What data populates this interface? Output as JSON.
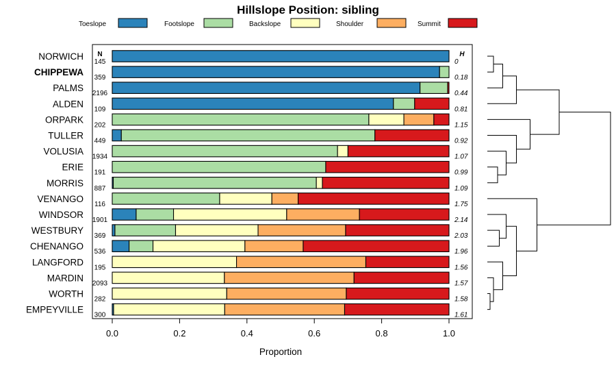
{
  "chart_data": {
    "type": "bar",
    "orientation": "horizontal",
    "stacked": true,
    "title": "Hillslope Position: sibling",
    "xlabel": "Proportion",
    "ylabel": "",
    "xlim": [
      0,
      1
    ],
    "xticks": [
      "0.0",
      "0.2",
      "0.4",
      "0.6",
      "0.8",
      "1.0"
    ],
    "n_header": "N",
    "h_header": "H",
    "highlighted_category": "CHIPPEWA",
    "series": [
      {
        "name": "Toeslope",
        "color": "#2b83ba"
      },
      {
        "name": "Footslope",
        "color": "#abdda4"
      },
      {
        "name": "Backslope",
        "color": "#ffffbf"
      },
      {
        "name": "Shoulder",
        "color": "#fdae61"
      },
      {
        "name": "Summit",
        "color": "#d7191c"
      }
    ],
    "categories": [
      "NORWICH",
      "CHIPPEWA",
      "PALMS",
      "ALDEN",
      "ORPARK",
      "TULLER",
      "VOLUSIA",
      "ERIE",
      "MORRIS",
      "VENANGO",
      "WINDSOR",
      "WESTBURY",
      "CHENANGO",
      "LANGFORD",
      "MARDIN",
      "WORTH",
      "EMPEYVILLE"
    ],
    "n": [
      "145",
      "359",
      "2196",
      "109",
      "202",
      "449",
      "1934",
      "191",
      "887",
      "116",
      "1901",
      "369",
      "536",
      "195",
      "2093",
      "282",
      "300"
    ],
    "h": [
      "0",
      "0.18",
      "0.44",
      "0.81",
      "1.15",
      "0.92",
      "1.07",
      "0.99",
      "1.09",
      "1.75",
      "2.14",
      "2.03",
      "1.96",
      "1.56",
      "1.57",
      "1.58",
      "1.61"
    ],
    "proportions": [
      [
        1.0,
        0.0,
        0.0,
        0.0,
        0.0
      ],
      [
        0.972,
        0.028,
        0.0,
        0.0,
        0.0
      ],
      [
        0.914,
        0.082,
        0.0,
        0.0,
        0.004
      ],
      [
        0.835,
        0.063,
        0.0,
        0.0,
        0.102
      ],
      [
        0.0,
        0.762,
        0.104,
        0.089,
        0.045
      ],
      [
        0.027,
        0.753,
        0.0,
        0.0,
        0.22
      ],
      [
        0.0,
        0.669,
        0.031,
        0.0,
        0.3
      ],
      [
        0.0,
        0.634,
        0.0,
        0.0,
        0.366
      ],
      [
        0.003,
        0.603,
        0.018,
        0.0,
        0.376
      ],
      [
        0.0,
        0.319,
        0.155,
        0.078,
        0.448
      ],
      [
        0.071,
        0.111,
        0.336,
        0.216,
        0.266
      ],
      [
        0.008,
        0.18,
        0.245,
        0.26,
        0.307
      ],
      [
        0.05,
        0.071,
        0.273,
        0.173,
        0.433
      ],
      [
        0.0,
        0.0,
        0.369,
        0.384,
        0.247
      ],
      [
        0.0,
        0.0,
        0.333,
        0.385,
        0.282
      ],
      [
        0.0,
        0.0,
        0.34,
        0.355,
        0.305
      ],
      [
        0.004,
        0.0,
        0.33,
        0.356,
        0.31
      ]
    ],
    "dendrogram_merges": [
      [
        -1,
        -2,
        0.18
      ],
      [
        1,
        -3,
        0.45
      ],
      [
        2,
        -4,
        0.85
      ],
      [
        -17,
        -16,
        0.08
      ],
      [
        4,
        -15,
        0.18
      ],
      [
        5,
        -14,
        0.45
      ],
      [
        -12,
        -13,
        0.35
      ],
      [
        -11,
        7,
        0.55
      ],
      [
        8,
        6,
        0.85
      ],
      [
        -10,
        9,
        1.45
      ],
      [
        -9,
        -8,
        0.3
      ],
      [
        -7,
        11,
        0.55
      ],
      [
        -6,
        12,
        0.85
      ],
      [
        13,
        -5,
        1.25
      ],
      [
        3,
        14,
        2.1
      ],
      [
        15,
        10,
        3.6
      ]
    ]
  }
}
